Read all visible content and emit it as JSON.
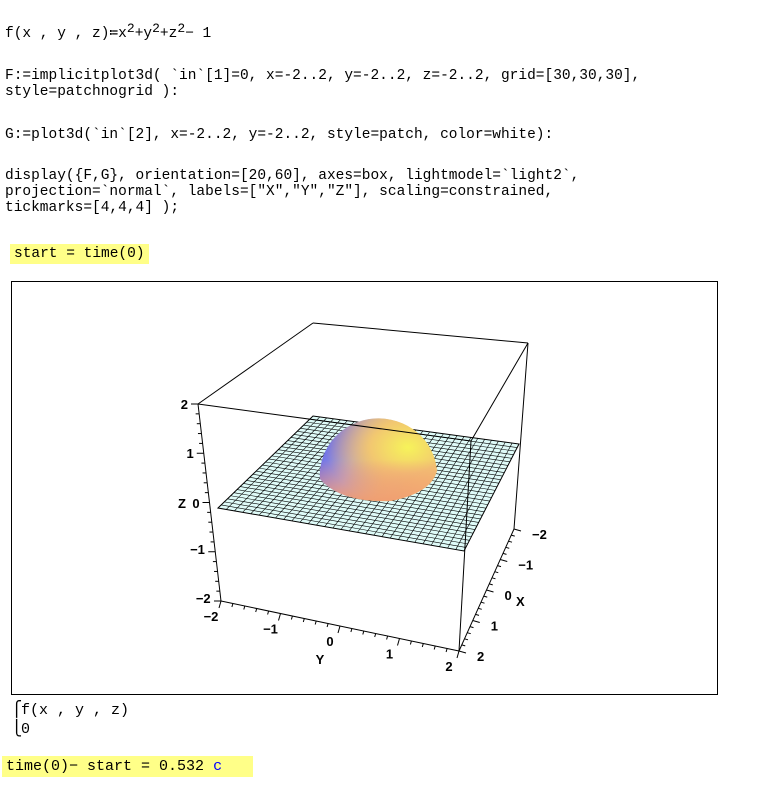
{
  "input1": {
    "fname": "f",
    "args": "x , y , z",
    "assign": "≔",
    "terms": [
      "x",
      "+y",
      "+z"
    ],
    "exp": "2",
    "tail": "− 1"
  },
  "input2": [
    "F:=implicitplot3d( `in`[1]=0, x=-2..2, y=-2..2, z=-2..2, grid=[30,30,30],",
    "style=patchnogrid ):"
  ],
  "input3": "G:=plot3d(`in`[2], x=-2..2, y=-2..2, style=patch, color=white):",
  "input4": [
    "display({F,G}, orientation=[20,60], axes=box, lightmodel=`light2`,",
    "projection=`normal`, labels=[\"X\",\"Y\",\"Z\"], scaling=constrained,",
    "tickmarks=[4,4,4] );"
  ],
  "start_cmd": "start = time(0)",
  "plot": {
    "axis_labels": {
      "x": "X",
      "y": "Y",
      "z": "Z"
    },
    "z_ticks": [
      "2",
      "1",
      "0",
      "−1",
      "−2"
    ],
    "y_ticks": [
      "−2",
      "−1",
      "0",
      "1",
      "2"
    ],
    "x_ticks": [
      "−2",
      "−1",
      "0",
      "1",
      "2"
    ],
    "plane_color": "#dffbf8",
    "sphere_colors": [
      "#5a5cf0",
      "#f4f060",
      "#f09a80"
    ]
  },
  "output": {
    "line1": "f(x , y , z)",
    "line2": "0"
  },
  "timing": {
    "expr": "time(0)− start = 0.532",
    "unit": "c",
    "unit_color": "#0000ff"
  }
}
